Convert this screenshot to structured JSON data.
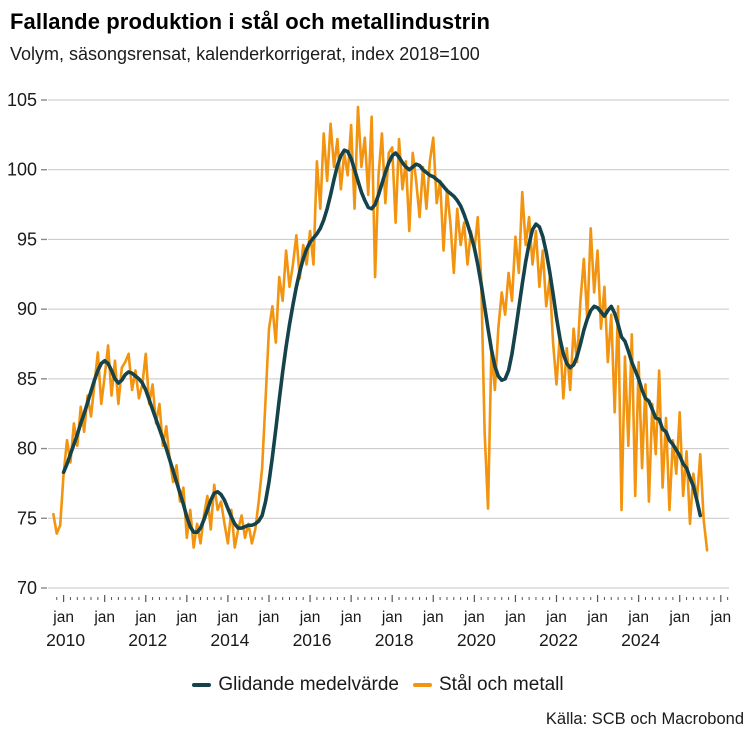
{
  "header": {
    "title": "Fallande produktion i stål och metallindustrin",
    "subtitle": "Volym, säsongsrensat, kalenderkorrigerat, index 2018=100"
  },
  "source": "Källa: SCB och Macrobond",
  "legend": [
    {
      "label": "Glidande medelvärde",
      "color": "#15434B"
    },
    {
      "label": "Stål och metall",
      "color": "#F2940F"
    }
  ],
  "colors": {
    "grid": "#c6c6c6",
    "tick": "#555555",
    "axis_text": "#1a1a1a"
  },
  "chart_data": {
    "type": "line",
    "title": "Fallande produktion i stål och metallindustrin",
    "subtitle": "Volym, säsongsrensat, kalenderkorrigerat, index 2018=100",
    "xlabel": "",
    "ylabel": "index 2018=100",
    "ylim": [
      70,
      105
    ],
    "y_ticks": [
      70,
      75,
      80,
      85,
      90,
      95,
      100,
      105
    ],
    "grid": true,
    "legend_position": "bottom",
    "x_unit": "month",
    "x_tick_label": "jan",
    "x_tick_years": [
      2010,
      2011,
      2012,
      2013,
      2014,
      2015,
      2016,
      2017,
      2018,
      2019,
      2020,
      2021,
      2022,
      2023,
      2024,
      2025,
      2026
    ],
    "x_year_labels_shown": [
      2010,
      2012,
      2014,
      2016,
      2018,
      2020,
      2022,
      2024
    ],
    "x_minor_tick_interval_months": 2,
    "series": [
      {
        "name": "Glidande medelvärde",
        "color": "#15434B",
        "width": 3.6,
        "start": "2010-01",
        "values": [
          78.3,
          78.9,
          79.6,
          80.3,
          81.0,
          81.8,
          82.5,
          83.3,
          84.1,
          84.9,
          85.6,
          86.1,
          86.3,
          86.1,
          85.6,
          85.0,
          84.7,
          84.9,
          85.3,
          85.5,
          85.4,
          85.2,
          85.0,
          84.7,
          84.2,
          83.5,
          82.8,
          82.1,
          81.4,
          80.7,
          80.0,
          79.2,
          78.4,
          77.6,
          76.8,
          76.0,
          75.1,
          74.4,
          74.0,
          74.0,
          74.3,
          74.9,
          75.6,
          76.3,
          76.8,
          76.9,
          76.7,
          76.3,
          75.7,
          75.1,
          74.6,
          74.3,
          74.3,
          74.4,
          74.5,
          74.5,
          74.6,
          74.8,
          75.2,
          76.2,
          77.6,
          79.4,
          81.4,
          83.5,
          85.5,
          87.3,
          88.9,
          90.3,
          91.6,
          92.7,
          93.6,
          94.3,
          94.8,
          95.1,
          95.4,
          95.8,
          96.4,
          97.2,
          98.2,
          99.3,
          100.3,
          101.0,
          101.4,
          101.3,
          100.8,
          100.0,
          99.2,
          98.4,
          97.8,
          97.3,
          97.2,
          97.5,
          98.2,
          99.0,
          99.8,
          100.5,
          101.0,
          101.2,
          100.9,
          100.5,
          100.2,
          100.0,
          100.2,
          100.4,
          100.3,
          100.0,
          99.8,
          99.6,
          99.5,
          99.3,
          99.1,
          98.8,
          98.5,
          98.3,
          98.1,
          97.8,
          97.4,
          96.8,
          96.1,
          95.3,
          94.4,
          93.2,
          91.8,
          90.2,
          88.6,
          87.1,
          85.9,
          85.2,
          84.9,
          85.0,
          85.6,
          86.8,
          88.4,
          90.1,
          91.8,
          93.4,
          94.7,
          95.7,
          96.1,
          95.9,
          95.2,
          94.1,
          92.7,
          91.1,
          89.4,
          87.9,
          86.8,
          86.1,
          85.8,
          86.0,
          86.6,
          87.5,
          88.5,
          89.3,
          89.9,
          90.2,
          90.1,
          89.8,
          89.5,
          89.9,
          90.2,
          89.7,
          88.9,
          88.0,
          87.7,
          87.0,
          86.2,
          85.6,
          85.0,
          84.2,
          83.6,
          83.4,
          82.8,
          82.2,
          82.1,
          81.4,
          81.2,
          80.6,
          80.3,
          79.9,
          79.5,
          78.9,
          78.6,
          77.9,
          77.3,
          76.3,
          75.2
        ]
      },
      {
        "name": "Stål och metall",
        "color": "#F2940F",
        "width": 2.6,
        "start": "2009-10",
        "values": [
          75.3,
          73.9,
          74.5,
          78.2,
          80.6,
          79.0,
          81.8,
          80.2,
          83.0,
          81.2,
          83.8,
          82.3,
          84.6,
          86.9,
          83.2,
          85.2,
          87.4,
          83.8,
          86.3,
          83.2,
          85.8,
          86.2,
          86.8,
          84.2,
          85.6,
          83.6,
          84.6,
          86.8,
          83.2,
          84.6,
          81.8,
          83.2,
          80.2,
          81.6,
          79.2,
          77.6,
          78.8,
          76.2,
          77.2,
          73.6,
          75.6,
          72.9,
          74.6,
          73.2,
          75.2,
          76.6,
          74.2,
          77.4,
          75.6,
          76.2,
          74.6,
          73.2,
          75.6,
          72.9,
          74.2,
          75.2,
          73.6,
          74.6,
          73.2,
          74.2,
          76.2,
          78.6,
          83.5,
          88.6,
          90.2,
          87.6,
          92.3,
          90.6,
          94.2,
          91.6,
          93.2,
          95.3,
          92.2,
          94.6,
          93.2,
          95.6,
          93.2,
          100.6,
          97.2,
          102.6,
          99.2,
          103.3,
          100.2,
          102.2,
          98.6,
          101.2,
          99.6,
          103.2,
          97.2,
          104.5,
          100.2,
          102.3,
          98.2,
          103.8,
          92.3,
          99.6,
          102.6,
          97.6,
          101.2,
          101.6,
          96.2,
          102.2,
          98.6,
          100.6,
          95.6,
          101.2,
          99.2,
          96.6,
          100.2,
          97.2,
          100.6,
          102.3,
          97.6,
          99.2,
          94.2,
          98.6,
          96.2,
          92.6,
          97.2,
          94.6,
          96.2,
          93.2,
          95.6,
          94.2,
          96.6,
          92.2,
          81.2,
          75.7,
          87.2,
          84.2,
          88.6,
          91.2,
          89.6,
          92.6,
          90.6,
          95.2,
          92.6,
          98.4,
          94.6,
          96.6,
          93.2,
          95.6,
          91.6,
          94.2,
          90.2,
          92.2,
          87.6,
          84.6,
          88.2,
          83.6,
          87.2,
          84.2,
          88.6,
          86.2,
          90.6,
          93.6,
          89.2,
          95.8,
          91.2,
          94.2,
          88.6,
          91.6,
          86.2,
          89.6,
          82.6,
          90.2,
          75.6,
          86.6,
          80.2,
          88.2,
          76.6,
          86.2,
          78.6,
          84.6,
          76.2,
          83.2,
          79.6,
          85.6,
          77.2,
          82.2,
          75.6,
          80.6,
          78.2,
          82.6,
          76.6,
          79.8,
          74.6,
          78.2,
          76.2,
          79.6,
          74.9,
          72.7
        ]
      }
    ]
  }
}
